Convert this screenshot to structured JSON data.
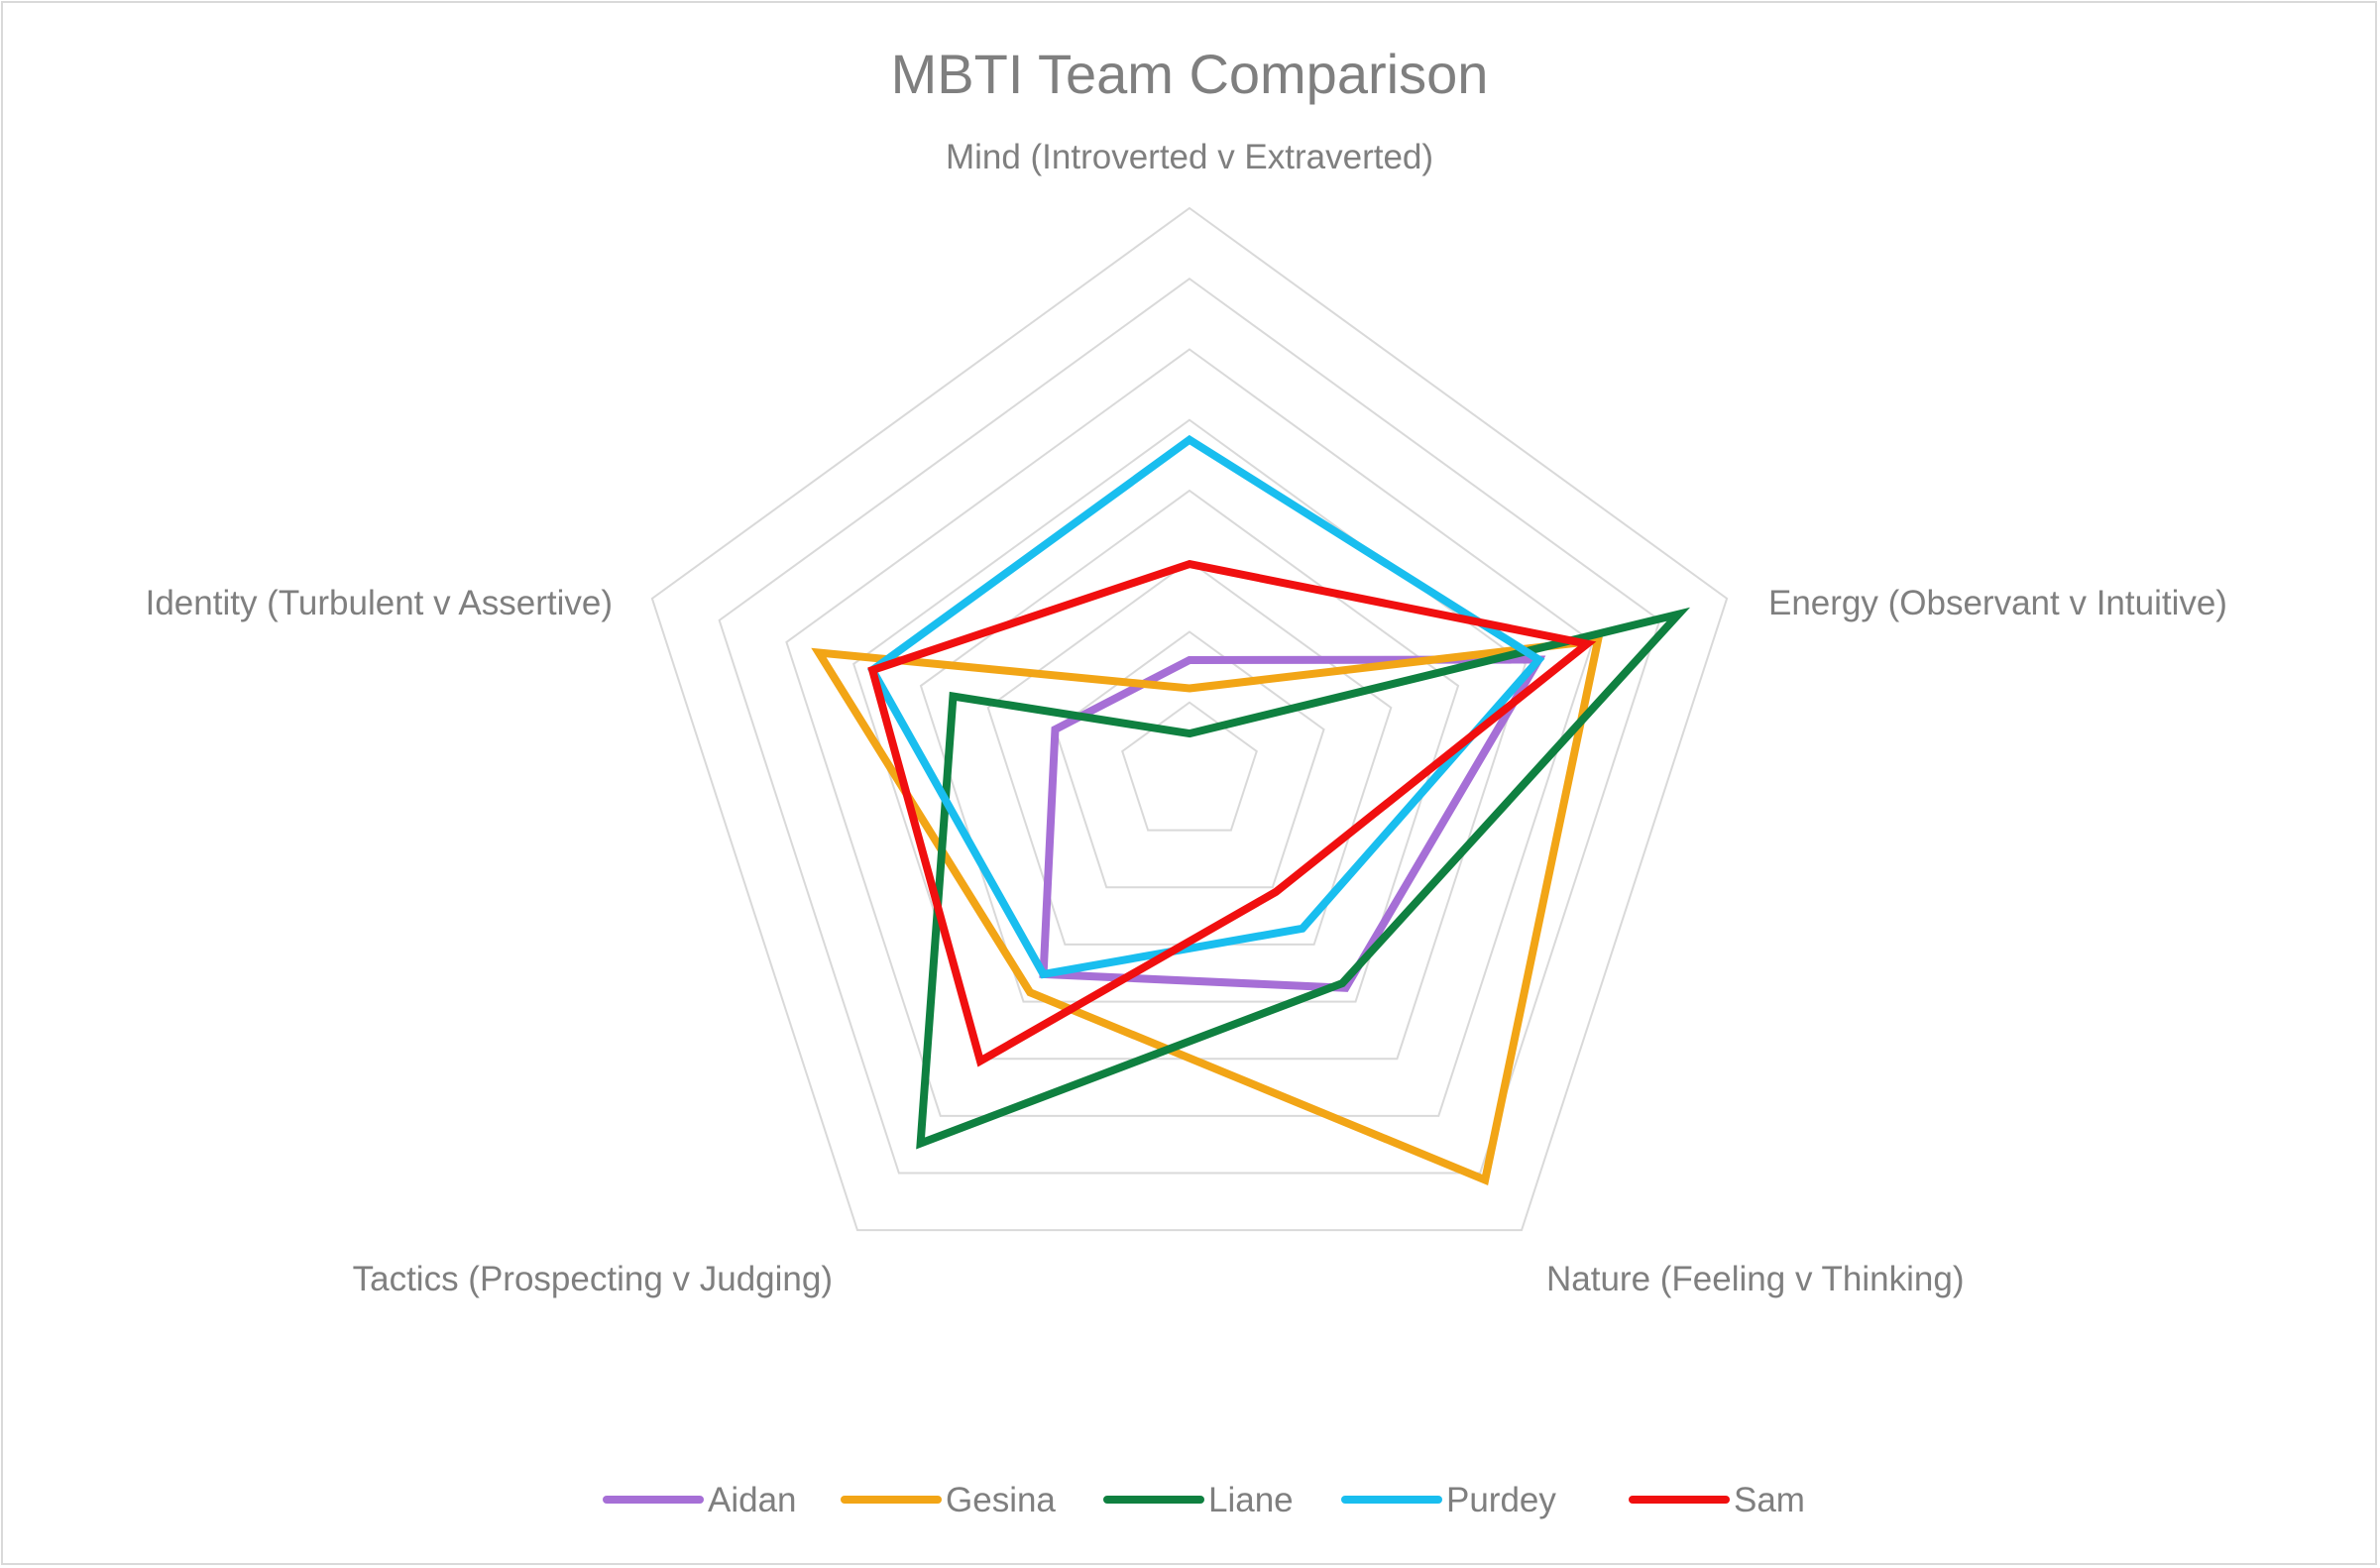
{
  "chart_data": {
    "type": "radar",
    "title": "MBTI Team Comparison",
    "axes": [
      "Mind (Introverted v Extraverted)",
      "Energy (Observant v Intuitive)",
      "Nature (Feeling v Thinking)",
      "Tactics (Prospecting v Judging)",
      "Identity (Turbulent v Assertive)"
    ],
    "rlim": [
      0,
      100
    ],
    "rings": 8,
    "grid": true,
    "legend_position": "bottom",
    "series": [
      {
        "name": "Aidan",
        "color": "#a66fd6",
        "values": [
          20,
          65,
          47,
          44,
          25
        ]
      },
      {
        "name": "Gesina",
        "color": "#f2a516",
        "values": [
          15,
          76,
          89,
          48,
          69
        ]
      },
      {
        "name": "Liane",
        "color": "#0f8040",
        "values": [
          7,
          91,
          46,
          81,
          44
        ]
      },
      {
        "name": "Purdey",
        "color": "#19beef",
        "values": [
          59,
          65,
          34,
          44,
          59
        ]
      },
      {
        "name": "Sam",
        "color": "#f00f0f",
        "values": [
          37,
          74,
          26,
          63,
          59
        ]
      }
    ]
  }
}
